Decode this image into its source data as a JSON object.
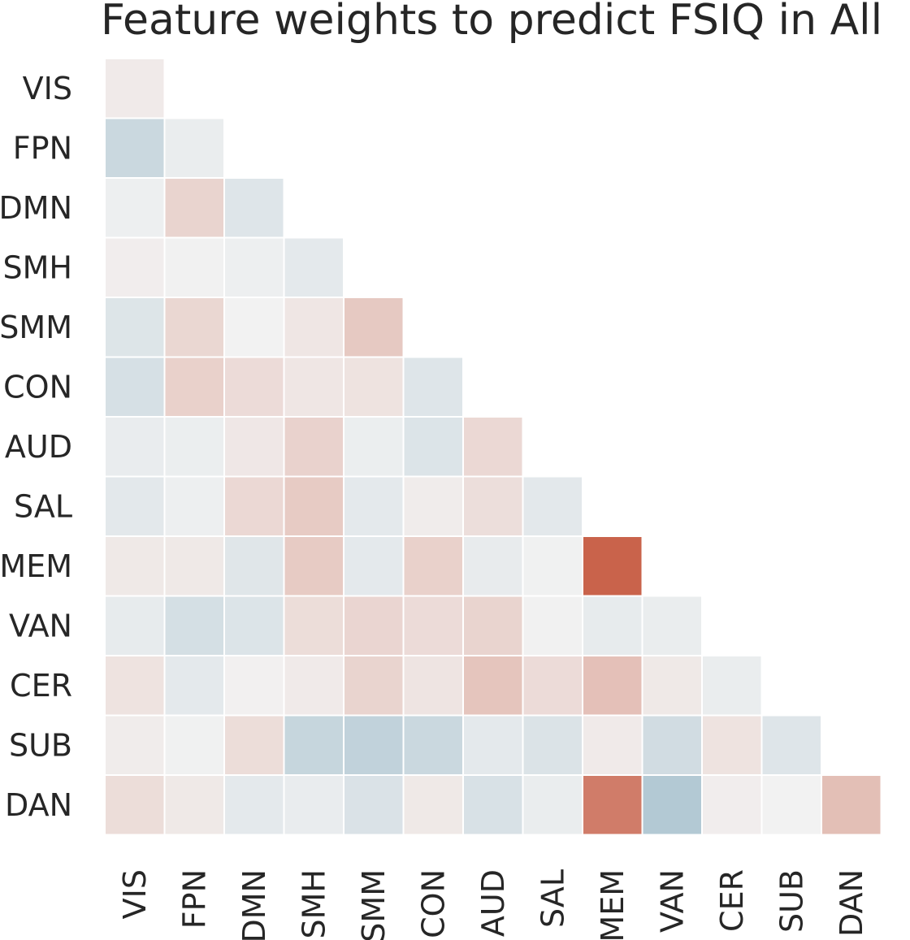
{
  "chart_data": {
    "type": "heatmap",
    "title": "Feature weights to predict FSIQ in All",
    "row_labels": [
      "VIS",
      "FPN",
      "DMN",
      "SMH",
      "SMM",
      "CON",
      "AUD",
      "SAL",
      "MEM",
      "VAN",
      "CER",
      "SUB",
      "DAN"
    ],
    "col_labels": [
      "VIS",
      "FPN",
      "DMN",
      "SMH",
      "SMM",
      "CON",
      "AUD",
      "SAL",
      "MEM",
      "VAN",
      "CER",
      "SUB",
      "DAN"
    ],
    "mask": "upper-triangle",
    "colormap": "diverging blue-white-red",
    "colors": {
      "negative": "#7fa7bc",
      "neutral": "#f2f2f2",
      "positive": "#c75b42"
    },
    "values": [
      [
        0.05
      ],
      [
        -0.35,
        -0.07
      ],
      [
        -0.04,
        0.2,
        -0.17
      ],
      [
        0.03,
        -0.01,
        -0.04,
        -0.12
      ],
      [
        -0.18,
        0.18,
        0.0,
        0.08,
        0.27
      ],
      [
        -0.24,
        0.22,
        0.15,
        0.08,
        0.1,
        -0.17
      ],
      [
        -0.08,
        -0.06,
        0.07,
        0.21,
        -0.06,
        -0.19,
        0.17
      ],
      [
        -0.13,
        -0.04,
        0.17,
        0.26,
        -0.12,
        0.04,
        0.13,
        -0.13
      ],
      [
        0.06,
        0.06,
        -0.16,
        0.26,
        -0.12,
        0.22,
        -0.09,
        -0.02,
        0.95
      ],
      [
        -0.1,
        -0.26,
        -0.19,
        0.14,
        0.19,
        0.15,
        0.2,
        -0.01,
        -0.1,
        -0.07
      ],
      [
        0.1,
        -0.12,
        0.01,
        0.05,
        0.2,
        0.09,
        0.3,
        0.15,
        0.33,
        0.06,
        -0.07
      ],
      [
        0.04,
        -0.02,
        0.14,
        -0.38,
        -0.43,
        -0.35,
        -0.12,
        -0.2,
        0.05,
        -0.29,
        0.1,
        -0.17
      ],
      [
        0.14,
        0.06,
        -0.12,
        -0.08,
        -0.21,
        0.06,
        -0.23,
        -0.07,
        0.78,
        -0.55,
        0.03,
        0.0,
        0.34
      ]
    ],
    "vmin": -1,
    "vmax": 1
  }
}
